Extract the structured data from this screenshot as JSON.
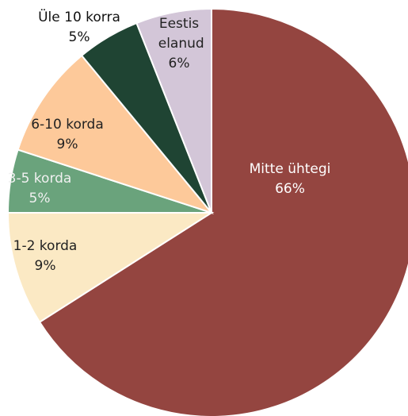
{
  "chart_data": {
    "type": "pie",
    "categories": [
      "Mitte ühtegi",
      "1-2 korda",
      "3-5 korda",
      "6-10 korda",
      "Üle 10 korra",
      "Eestis elanud"
    ],
    "values": [
      66,
      9,
      5,
      9,
      5,
      6
    ],
    "value_labels": [
      "66%",
      "9%",
      "5%",
      "9%",
      "5%",
      "6%"
    ],
    "colors": [
      "#944540",
      "#fbe9c4",
      "#6aa37c",
      "#fdc99a",
      "#1f4433",
      "#d3c6d8"
    ]
  }
}
